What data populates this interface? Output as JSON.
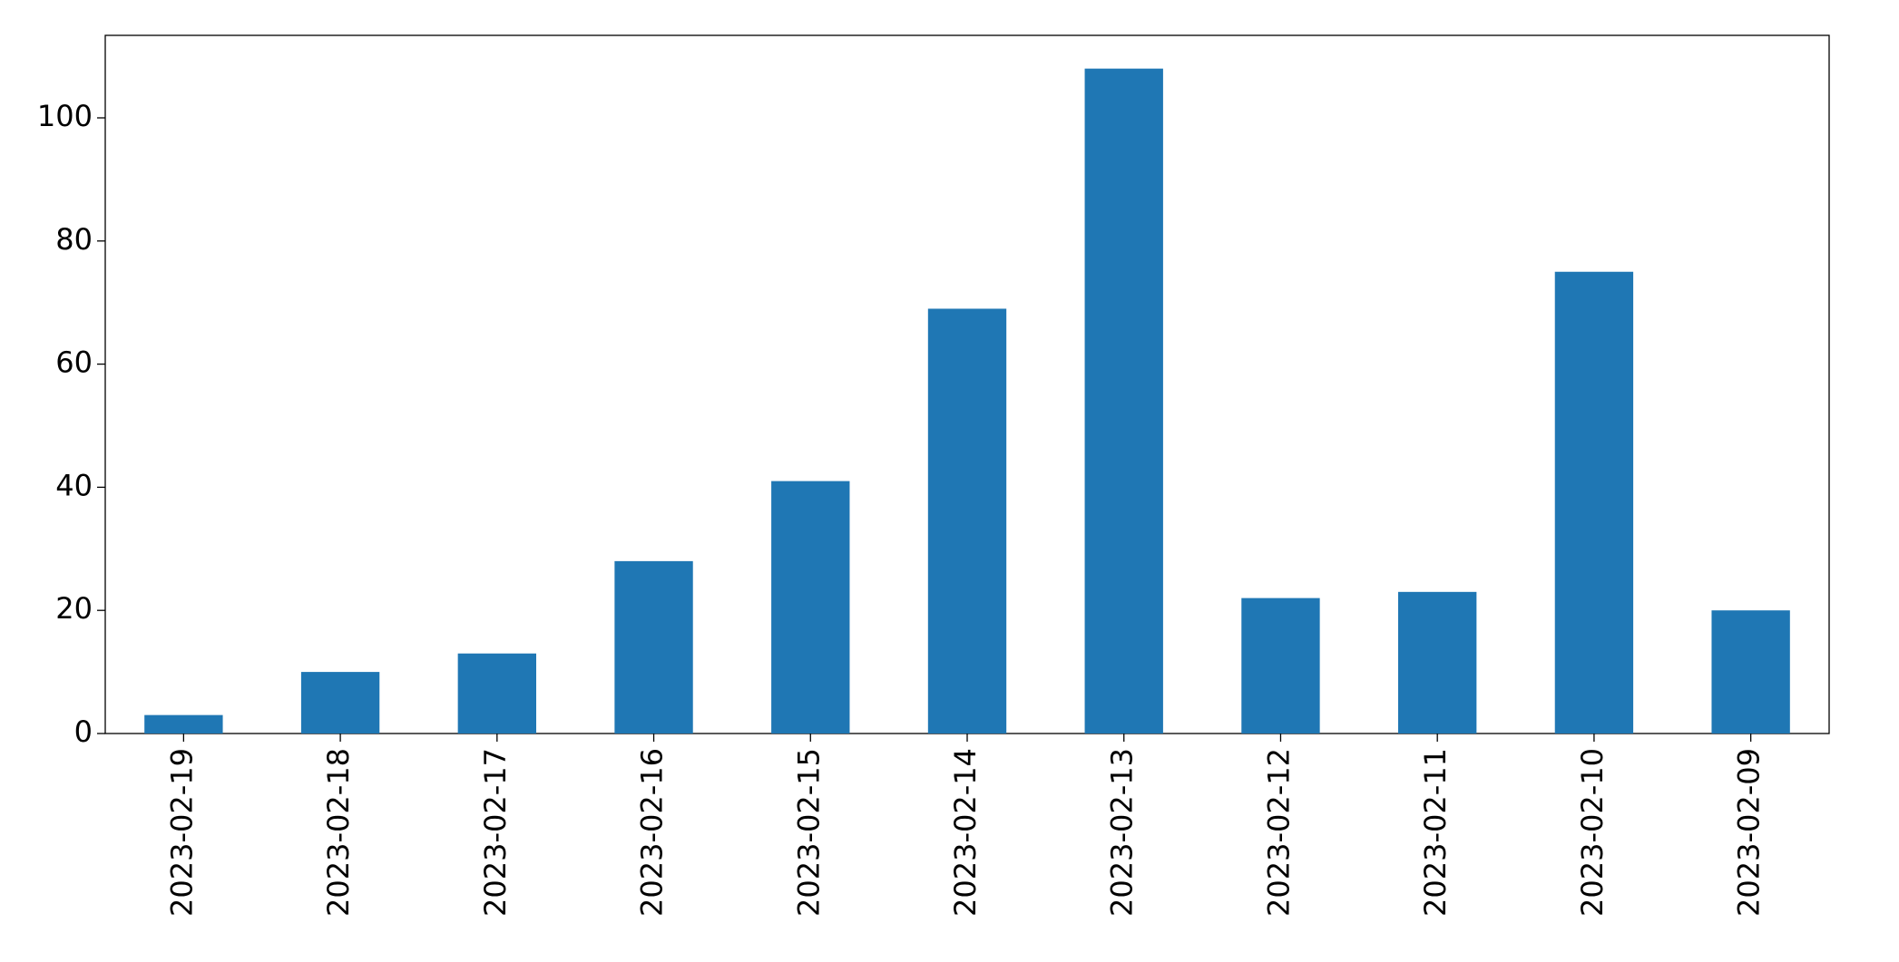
{
  "chart_data": {
    "type": "bar",
    "categories": [
      "2023-02-19",
      "2023-02-18",
      "2023-02-17",
      "2023-02-16",
      "2023-02-15",
      "2023-02-14",
      "2023-02-13",
      "2023-02-12",
      "2023-02-11",
      "2023-02-10",
      "2023-02-09"
    ],
    "values": [
      3,
      10,
      13,
      28,
      41,
      69,
      108,
      22,
      23,
      75,
      20
    ],
    "color": "#1f77b4",
    "ylim": [
      0,
      113.4
    ],
    "yticks": [
      0,
      20,
      40,
      60,
      80,
      100
    ],
    "grid": false
  }
}
